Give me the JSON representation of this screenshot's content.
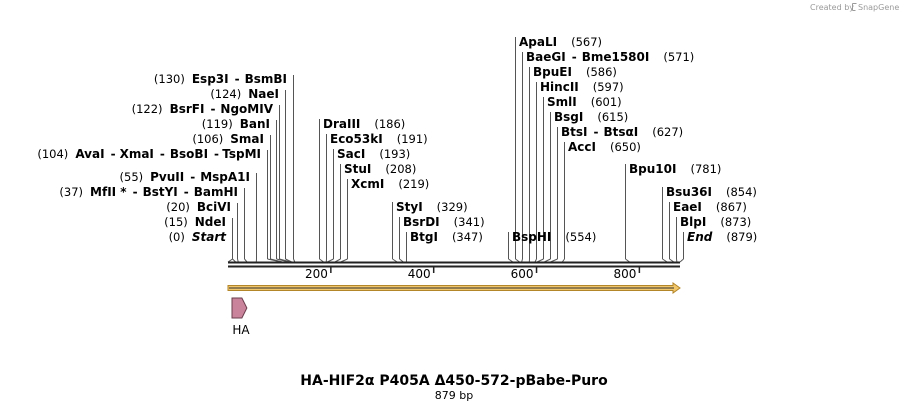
{
  "credit": {
    "prefix": "Created by",
    "brand": "SnapGene"
  },
  "map": {
    "title": "HA-HIF2α P405A Δ450-572-pBabe-Puro",
    "length_text": "879 bp",
    "length": 879,
    "ticks": [
      200,
      400,
      600,
      800
    ]
  },
  "features": [
    {
      "name": "HA",
      "start": 1,
      "end": 27,
      "direction": "forward",
      "color": "#c9839b"
    }
  ],
  "orf": {
    "start": 1,
    "end": 879,
    "color": "#f1c569"
  },
  "sites": [
    {
      "pos": 0,
      "pos_text": "(0)",
      "names": [
        "Start"
      ],
      "style": "end"
    },
    {
      "pos": 15,
      "pos_text": "(15)",
      "names": [
        "NdeI"
      ]
    },
    {
      "pos": 20,
      "pos_text": "(20)",
      "names": [
        "BciVI"
      ]
    },
    {
      "pos": 37,
      "pos_text": "(37)",
      "names": [
        "MfII *",
        "BstYI",
        "BamHI"
      ]
    },
    {
      "pos": 55,
      "pos_text": "(55)",
      "names": [
        "PvuII",
        "MspA1I"
      ]
    },
    {
      "pos": 104,
      "pos_text": "(104)",
      "names": [
        "AvaI",
        "XmaI",
        "BsoBI",
        "TspMI"
      ]
    },
    {
      "pos": 106,
      "pos_text": "(106)",
      "names": [
        "SmaI"
      ]
    },
    {
      "pos": 119,
      "pos_text": "(119)",
      "names": [
        "BanI"
      ]
    },
    {
      "pos": 122,
      "pos_text": "(122)",
      "names": [
        "BsrFI",
        "NgoMIV"
      ]
    },
    {
      "pos": 124,
      "pos_text": "(124)",
      "names": [
        "NaeI"
      ]
    },
    {
      "pos": 130,
      "pos_text": "(130)",
      "names": [
        "Esp3I",
        "BsmBI"
      ]
    },
    {
      "pos": 186,
      "pos_text": "(186)",
      "names": [
        "DraIII"
      ]
    },
    {
      "pos": 191,
      "pos_text": "(191)",
      "names": [
        "Eco53kI"
      ]
    },
    {
      "pos": 193,
      "pos_text": "(193)",
      "names": [
        "SacI"
      ]
    },
    {
      "pos": 208,
      "pos_text": "(208)",
      "names": [
        "StuI"
      ]
    },
    {
      "pos": 219,
      "pos_text": "(219)",
      "names": [
        "XcmI"
      ]
    },
    {
      "pos": 329,
      "pos_text": "(329)",
      "names": [
        "StyI"
      ]
    },
    {
      "pos": 341,
      "pos_text": "(341)",
      "names": [
        "BsrDI"
      ]
    },
    {
      "pos": 347,
      "pos_text": "(347)",
      "names": [
        "BtgI"
      ]
    },
    {
      "pos": 554,
      "pos_text": "(554)",
      "names": [
        "BspHI"
      ]
    },
    {
      "pos": 567,
      "pos_text": "(567)",
      "names": [
        "ApaLI"
      ]
    },
    {
      "pos": 571,
      "pos_text": "(571)",
      "names": [
        "BaeGI",
        "Bme1580I"
      ]
    },
    {
      "pos": 586,
      "pos_text": "(586)",
      "names": [
        "BpuEI"
      ]
    },
    {
      "pos": 597,
      "pos_text": "(597)",
      "names": [
        "HincII"
      ]
    },
    {
      "pos": 601,
      "pos_text": "(601)",
      "names": [
        "SmlI"
      ]
    },
    {
      "pos": 615,
      "pos_text": "(615)",
      "names": [
        "BsgI"
      ]
    },
    {
      "pos": 627,
      "pos_text": "(627)",
      "names": [
        "BtsI",
        "BtsαI"
      ]
    },
    {
      "pos": 650,
      "pos_text": "(650)",
      "names": [
        "AccI"
      ]
    },
    {
      "pos": 781,
      "pos_text": "(781)",
      "names": [
        "Bpu10I"
      ]
    },
    {
      "pos": 854,
      "pos_text": "(854)",
      "names": [
        "Bsu36I"
      ]
    },
    {
      "pos": 867,
      "pos_text": "(867)",
      "names": [
        "EaeI"
      ]
    },
    {
      "pos": 873,
      "pos_text": "(873)",
      "names": [
        "BlpI"
      ]
    },
    {
      "pos": 879,
      "pos_text": "(879)",
      "names": [
        "End"
      ],
      "style": "end"
    }
  ]
}
